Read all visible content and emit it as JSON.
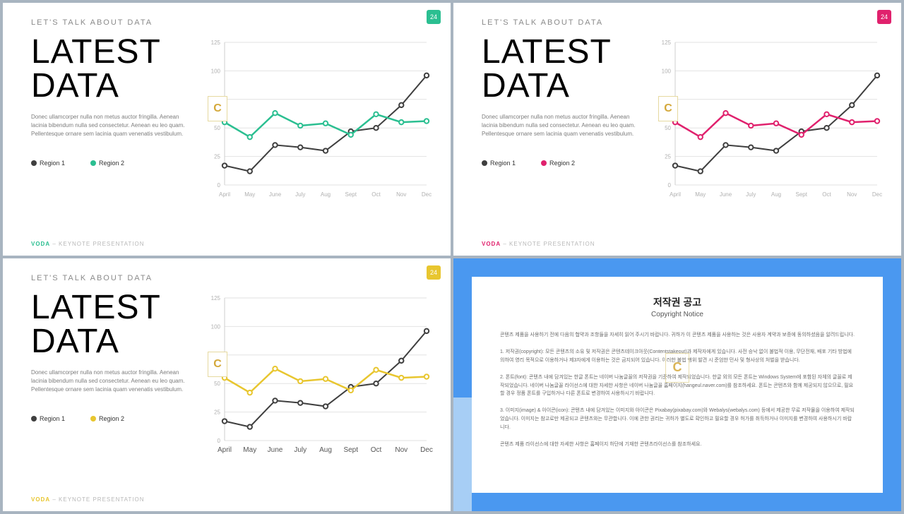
{
  "eyebrow": "LET'S TALK ABOUT DATA",
  "title": "LATEST\nDATA",
  "body": "Donec ullamcorper nulla non metus auctor fringilla. Aenean lacinia bibendum nulla sed consectetur. Aenean eu leo quam. Pellentesque ornare sem lacinia quam venenatis vestibulum.",
  "legend": {
    "r1": "Region 1",
    "r2": "Region 2"
  },
  "footer_brand": "VODA",
  "footer_rest": " – KEYNOTE PRESENTATION",
  "page_num": "24",
  "watermark": "C",
  "chart": {
    "type": "line",
    "months": [
      "April",
      "May",
      "June",
      "July",
      "Aug",
      "Sept",
      "Oct",
      "Nov",
      "Dec"
    ],
    "yticks": [
      0,
      25,
      50,
      75,
      100,
      125
    ],
    "ylim": [
      0,
      125
    ],
    "region1": [
      17,
      12,
      35,
      33,
      30,
      47,
      50,
      70,
      96
    ],
    "region2": [
      55,
      42,
      63,
      52,
      54,
      44,
      62,
      55,
      56
    ],
    "region1_color": "#3f3f3f",
    "grid_color": "#e2e2e2",
    "axis_color": "#cfcfcf",
    "bg": "#ffffff",
    "line_width": 2,
    "marker_r": 3.2,
    "tick_small_fontsize": 8,
    "tick_big_fontsize": 10
  },
  "variants": [
    {
      "accent": "#2bbf91",
      "brand_color": "#2bbf91",
      "big_labels": false
    },
    {
      "accent": "#e0216d",
      "brand_color": "#e0216d",
      "big_labels": false
    },
    {
      "accent": "#e8c62f",
      "brand_color": "#e8c62f",
      "big_labels": true
    }
  ],
  "notice": {
    "card_bg": "#ffffff",
    "outer_bg": "#4a98f0",
    "strip_bg": "#a7cef5",
    "title": "저작권 공고",
    "subtitle": "Copyright Notice",
    "p1": "콘텐츠 제품을 사용하기 전에 다음의 협약과 조항들을 자세히 읽어 주시기 바랍니다. 귀하가 이 콘텐츠 제품을 사용하는 것은 사용자 계약과 보증에 동의하셨음을 알려드립니다.",
    "p2": "1. 저작권(copyright): 모든 콘텐츠의 소유 및 저작권은 콘텐츠테이크아웃(Contentstakeout)과 제작자에게 있습니다. 사전 승낙 없이 불법적 이용, 무단전재, 배포 기타 방법에 의하여 영리 목적으로 이용하거나 제3자에게 이용하는 것은 금지되어 있습니다. 이러한 불법 행위 발견 시 준엄한 민사 및 형사상의 처벌을 받습니다.",
    "p3": "2. 폰트(font): 콘텐츠 내에 담겨있는 한글 폰트는 네이버 나눔글꼴의 저작권을 기준하여 제작되었습니다. 한글 외의 모든 폰트는 Windows System에 포함된 자체의 글꼴로 제작되었습니다. 네이버 나눔글꼴 라이선스에 대한 자세한 사항은 네이버 나눔글꼴 홈페이지(hangeul.naver.com)를 참조하세요. 폰트는 콘텐츠와 함께 제공되지 않으므로, 필요할 경우 정품 폰트를 구입하거나 다른 폰트로 변경하여 사용하시기 바랍니다.",
    "p4": "3. 이미지(image) & 아이콘(icon): 콘텐츠 내에 담겨있는 이미지와 아이콘은 Pixabay(pixabay.com)와 Webalys(webalys.com) 등에서 제공한 무료 저작물을 이용하여 제작되었습니다. 이미지는 참고로만 제공되고 콘텐츠와는 무관합니다. 이에 관한 권리는 귀하가 별도로 확인하고 필요할 경우 허가를 취득하거나 이미지를 변경하여 사용하시기 바랍니다.",
    "p5": "콘텐츠 제품 라이선스에 대한 자세한 사항은 홈페이지 하단에 기재한 콘텐츠라이선스를 참조하세요."
  }
}
